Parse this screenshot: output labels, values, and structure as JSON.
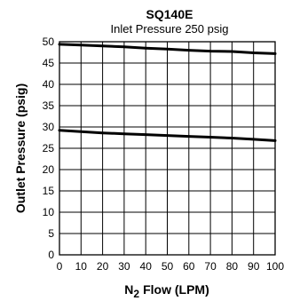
{
  "chart_data": {
    "type": "line",
    "title": "SQ140E",
    "subtitle": "Inlet Pressure 250 psig",
    "xlabel": "Flow (LPM)",
    "xlabel_prefix": "N",
    "xlabel_subscript": "2",
    "ylabel": "Outlet Pressure (psig)",
    "xlim": [
      0,
      100
    ],
    "ylim": [
      0,
      50
    ],
    "xticks": [
      0,
      10,
      20,
      30,
      40,
      50,
      60,
      70,
      80,
      90,
      100
    ],
    "yticks": [
      0,
      5,
      10,
      15,
      20,
      25,
      30,
      35,
      40,
      45,
      50
    ],
    "grid": true,
    "series": [
      {
        "x": [
          0,
          10,
          20,
          30,
          40,
          50,
          60,
          70,
          80,
          90,
          100
        ],
        "values": [
          49.4,
          49.2,
          49.0,
          48.8,
          48.5,
          48.3,
          48.0,
          47.8,
          47.7,
          47.4,
          47.2
        ]
      },
      {
        "x": [
          0,
          10,
          20,
          30,
          40,
          50,
          60,
          70,
          80,
          90,
          100
        ],
        "values": [
          29.2,
          28.9,
          28.6,
          28.4,
          28.2,
          28.0,
          27.8,
          27.6,
          27.4,
          27.1,
          26.8
        ]
      }
    ]
  }
}
